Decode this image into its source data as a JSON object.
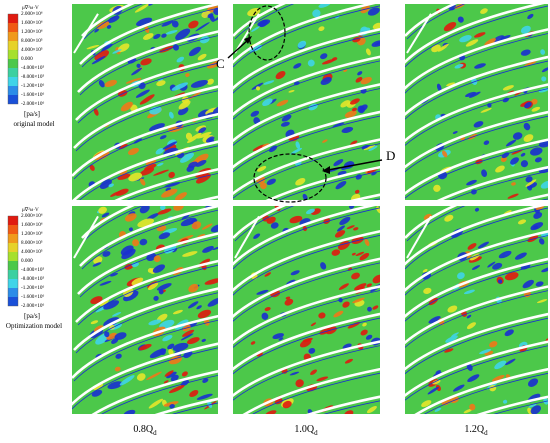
{
  "legend": {
    "title": "μ∇²ω·V",
    "unit": "[pa/s]",
    "ticks": [
      "2.000×10⁶",
      "1.600×10⁶",
      "1.200×10⁶",
      "8.000×10⁵",
      "4.000×10⁵",
      "0.000",
      "-4.000×10⁵",
      "-8.000×10⁵",
      "-1.200×10⁶",
      "-1.600×10⁶",
      "-2.000×10⁶"
    ]
  },
  "rows": [
    {
      "model": "original model"
    },
    {
      "model": "Optimization model"
    }
  ],
  "columns": [
    {
      "coef": "0.8Q",
      "subscript": "d"
    },
    {
      "coef": "1.0Q",
      "subscript": "d"
    },
    {
      "coef": "1.2Q",
      "subscript": "d"
    }
  ],
  "annotations": [
    "C",
    "D"
  ]
}
